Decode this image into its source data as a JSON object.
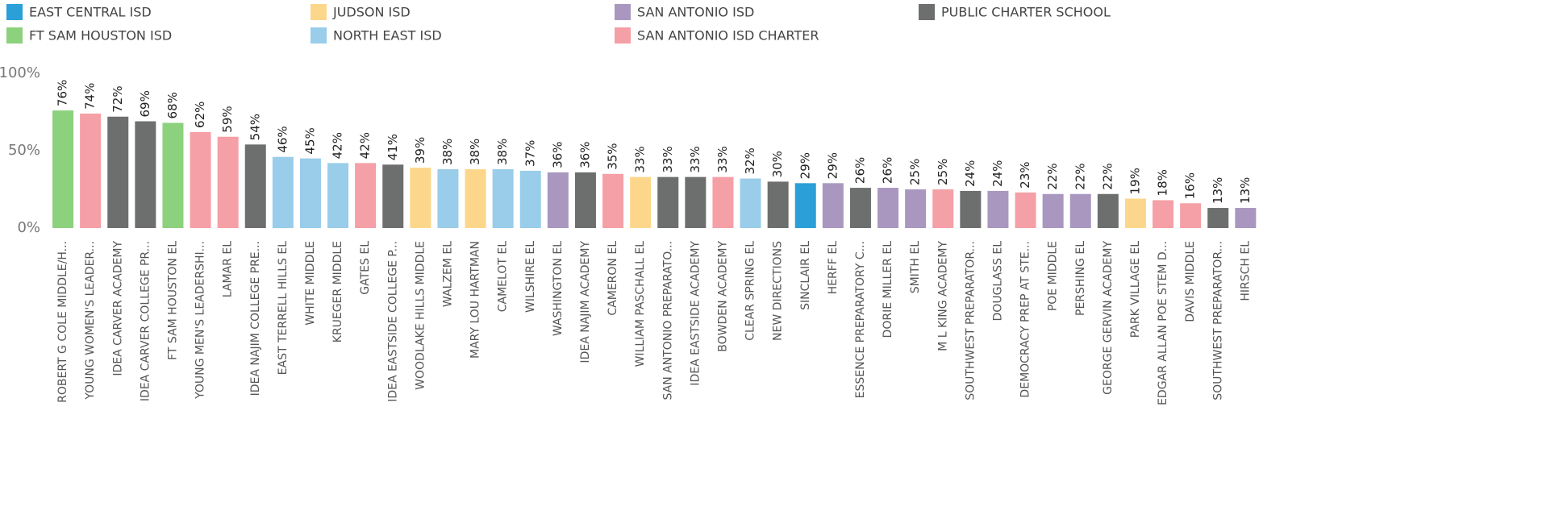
{
  "chart_data": {
    "type": "bar",
    "legend": [
      {
        "name": "EAST CENTRAL ISD",
        "color": "#2a9fd8"
      },
      {
        "name": "JUDSON ISD",
        "color": "#fcd68a"
      },
      {
        "name": "SAN ANTONIO ISD",
        "color": "#a997bf"
      },
      {
        "name": "PUBLIC CHARTER SCHOOL",
        "color": "#6d6e6e"
      },
      {
        "name": "FT SAM HOUSTON ISD",
        "color": "#8cd17d"
      },
      {
        "name": "NORTH EAST ISD",
        "color": "#99cdea"
      },
      {
        "name": "SAN ANTONIO ISD CHARTER",
        "color": "#f59fa6"
      }
    ],
    "categories": [
      "ROBERT G COLE MIDDLE/H...",
      "YOUNG WOMEN'S LEADER...",
      "IDEA CARVER ACADEMY",
      "IDEA CARVER COLLEGE PR...",
      "FT SAM HOUSTON EL",
      "YOUNG MEN'S LEADERSHI...",
      "LAMAR EL",
      "IDEA NAJIM COLLEGE PRE...",
      "EAST TERRELL HILLS EL",
      "WHITE MIDDLE",
      "KRUEGER MIDDLE",
      "GATES EL",
      "IDEA EASTSIDE COLLEGE P...",
      "WOODLAKE HILLS MIDDLE",
      "WALZEM EL",
      "MARY LOU HARTMAN",
      "CAMELOT EL",
      "WILSHIRE EL",
      "WASHINGTON EL",
      "IDEA NAJIM ACADEMY",
      "CAMERON EL",
      "WILLIAM PASCHALL EL",
      "SAN ANTONIO PREPARATO...",
      "IDEA EASTSIDE ACADEMY",
      "BOWDEN ACADEMY",
      "CLEAR SPRING EL",
      "NEW DIRECTIONS",
      "SINCLAIR EL",
      "HERFF EL",
      "ESSENCE PREPARATORY C...",
      "DORIE MILLER EL",
      "SMITH EL",
      "M L KING ACADEMY",
      "SOUTHWEST PREPARATOR...",
      "DOUGLASS EL",
      "DEMOCRACY PREP AT STE...",
      "POE MIDDLE",
      "PERSHING EL",
      "GEORGE GERVIN ACADEMY",
      "PARK VILLAGE EL",
      "EDGAR ALLAN POE STEM D...",
      "DAVIS MIDDLE",
      "SOUTHWEST PREPARATOR...",
      "HIRSCH EL"
    ],
    "values": [
      76,
      74,
      72,
      69,
      68,
      62,
      59,
      54,
      46,
      45,
      42,
      42,
      41,
      39,
      38,
      38,
      38,
      37,
      36,
      36,
      35,
      33,
      33,
      33,
      33,
      32,
      30,
      29,
      29,
      26,
      26,
      25,
      25,
      24,
      24,
      23,
      22,
      22,
      22,
      19,
      18,
      16,
      13,
      13
    ],
    "value_labels": [
      "76%",
      "74%",
      "72%",
      "69%",
      "68%",
      "62%",
      "59%",
      "54%",
      "46%",
      "45%",
      "42%",
      "42%",
      "41%",
      "39%",
      "38%",
      "38%",
      "38%",
      "37%",
      "36%",
      "36%",
      "35%",
      "33%",
      "33%",
      "33%",
      "33%",
      "32%",
      "30%",
      "29%",
      "29%",
      "26%",
      "26%",
      "25%",
      "25%",
      "24%",
      "24%",
      "23%",
      "22%",
      "22%",
      "22%",
      "19%",
      "18%",
      "16%",
      "13%",
      "13%"
    ],
    "colors": [
      "#8cd17d",
      "#f59fa6",
      "#6d6e6e",
      "#6d6e6e",
      "#8cd17d",
      "#f59fa6",
      "#f59fa6",
      "#6d6e6e",
      "#99cdea",
      "#99cdea",
      "#99cdea",
      "#f59fa6",
      "#6d6e6e",
      "#fcd68a",
      "#99cdea",
      "#fcd68a",
      "#99cdea",
      "#99cdea",
      "#a997bf",
      "#6d6e6e",
      "#f59fa6",
      "#fcd68a",
      "#6d6e6e",
      "#6d6e6e",
      "#f59fa6",
      "#99cdea",
      "#6d6e6e",
      "#2a9fd8",
      "#a997bf",
      "#6d6e6e",
      "#a997bf",
      "#a997bf",
      "#f59fa6",
      "#6d6e6e",
      "#a997bf",
      "#f59fa6",
      "#a997bf",
      "#a997bf",
      "#6d6e6e",
      "#fcd68a",
      "#f59fa6",
      "#f59fa6",
      "#6d6e6e",
      "#a997bf"
    ],
    "ylim": [
      0,
      100
    ],
    "yticks": [
      {
        "value": 0,
        "label": "0%"
      },
      {
        "value": 50,
        "label": "50%"
      },
      {
        "value": 100,
        "label": "100%"
      }
    ]
  }
}
